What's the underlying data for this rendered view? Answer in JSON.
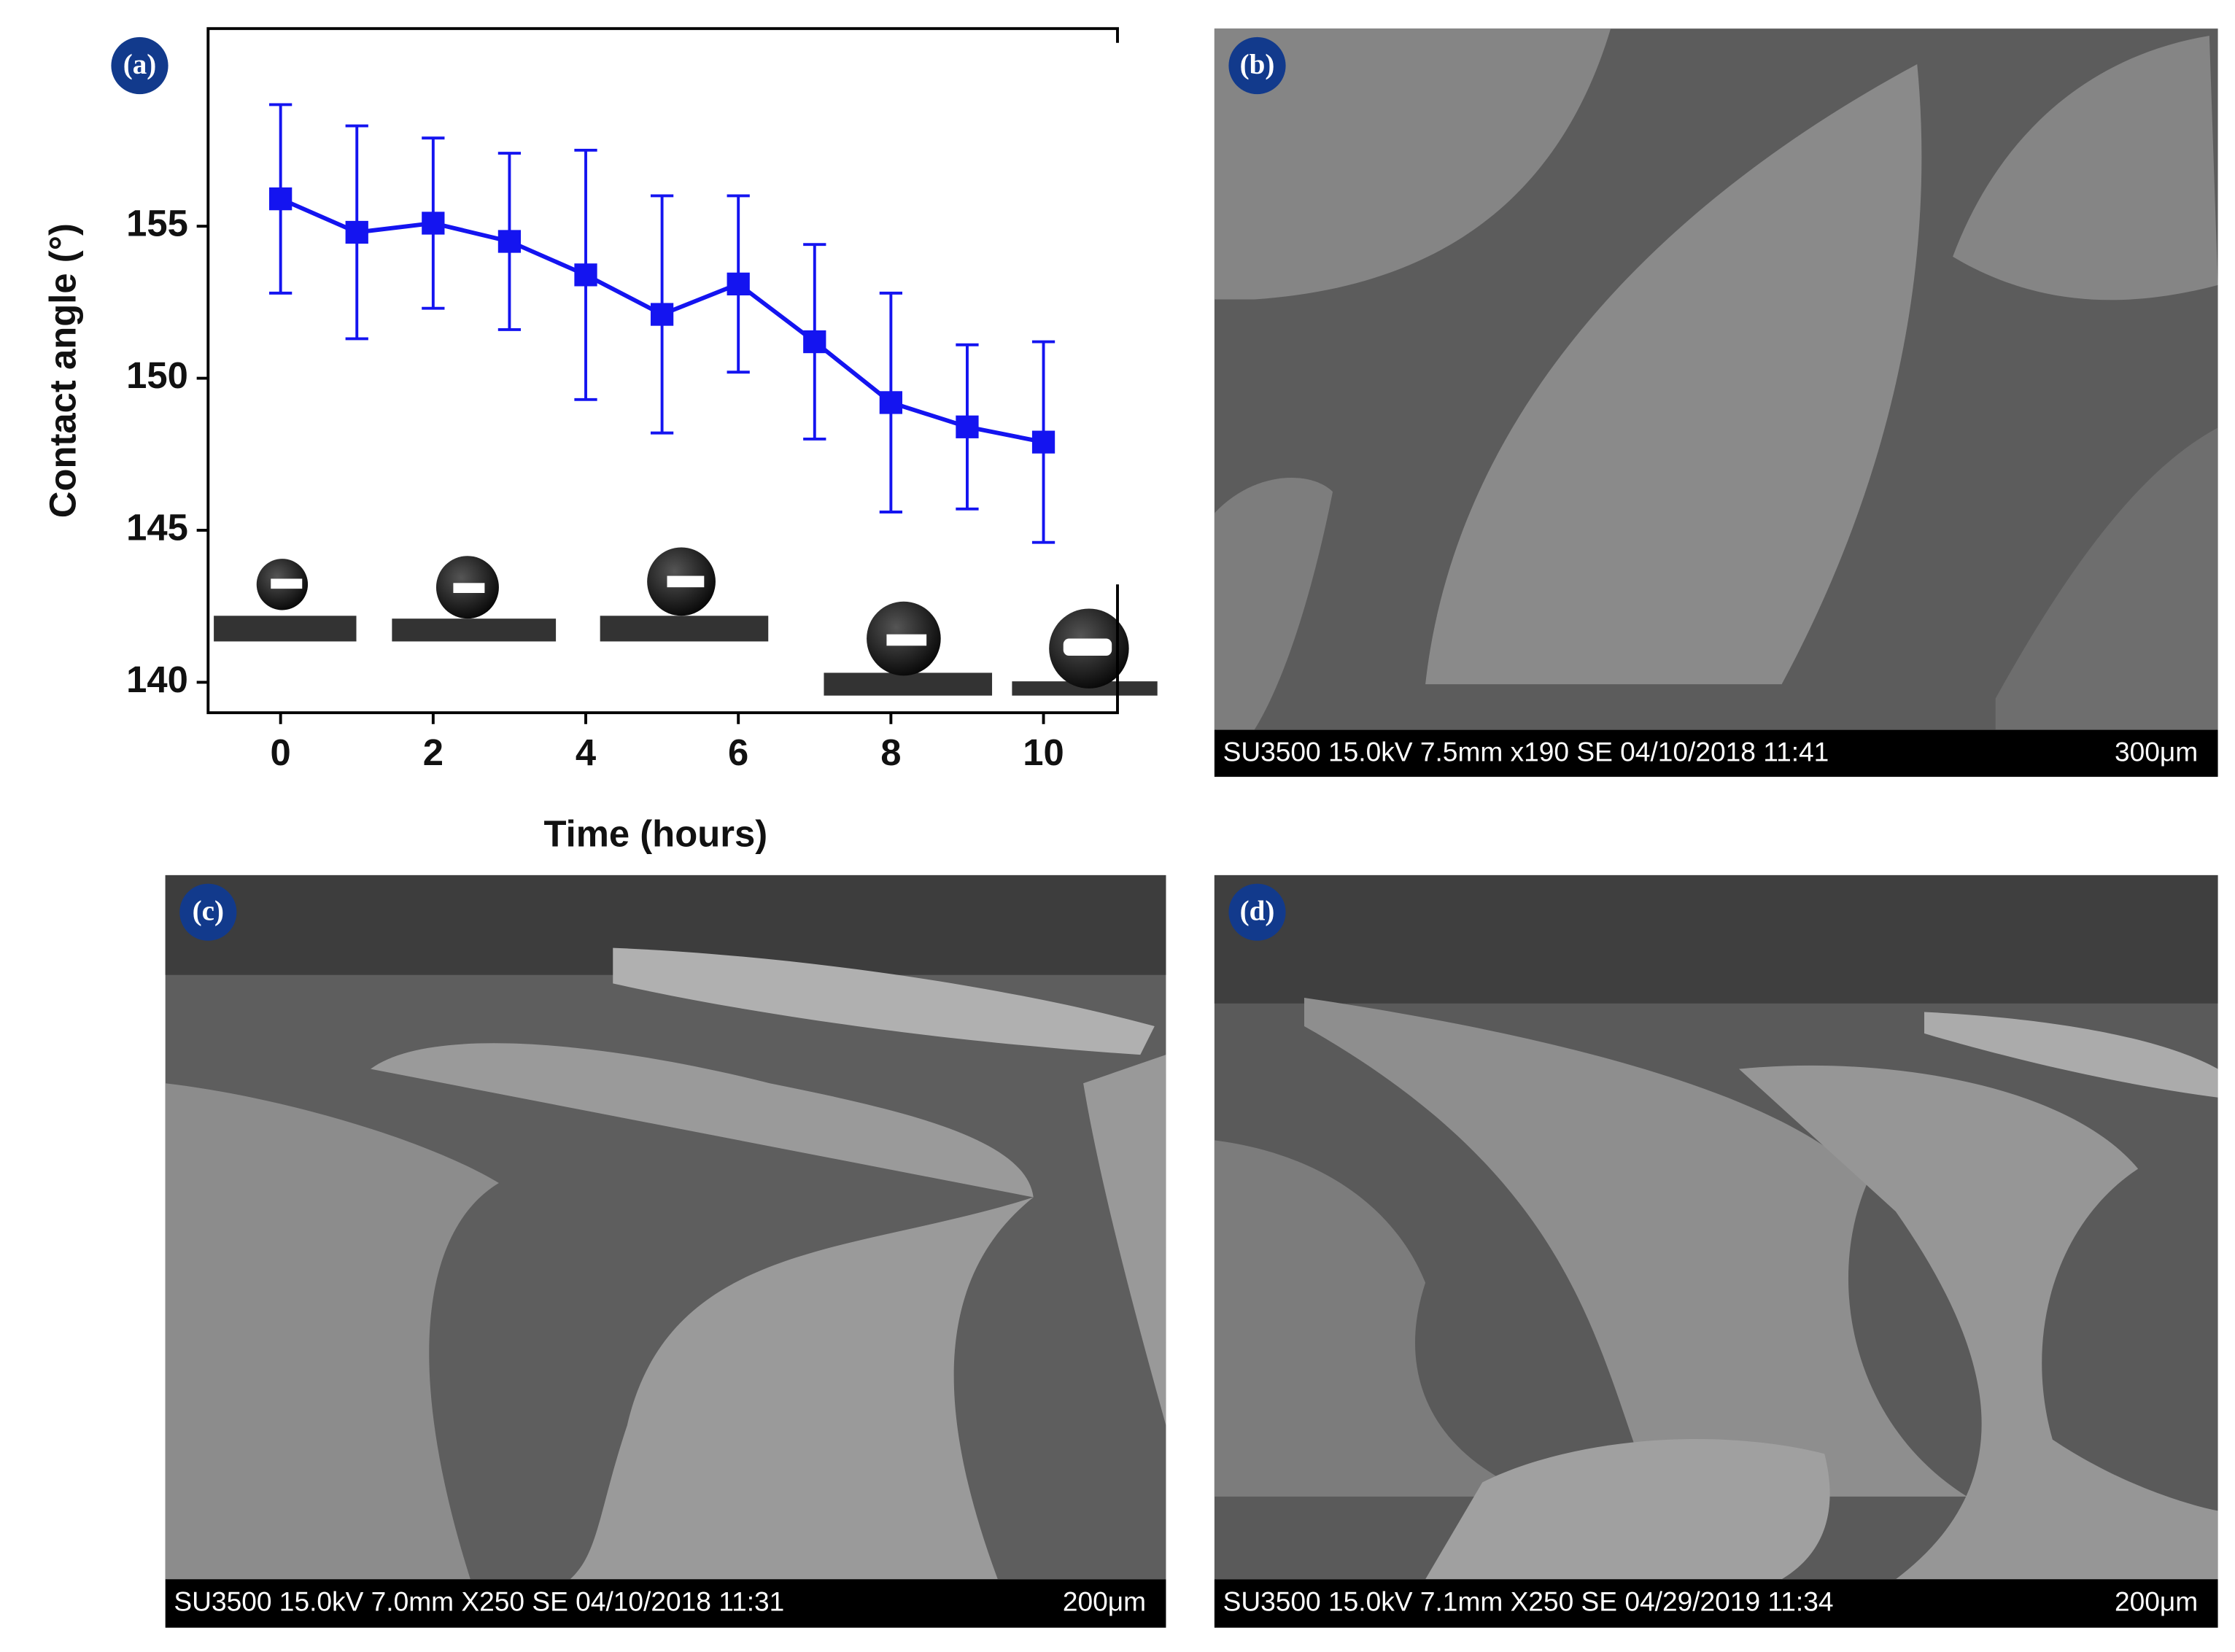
{
  "chart_data": {
    "type": "line",
    "panel_label": "(a)",
    "x_label": "Time (hours)",
    "y_label": "Contact angle (°)",
    "x": [
      0,
      1,
      2,
      3,
      4,
      5,
      6,
      7,
      8,
      9,
      10
    ],
    "series": [
      {
        "name": "Contact angle",
        "color": "#1414f0",
        "values": [
          155.9,
          154.8,
          155.1,
          154.5,
          153.4,
          152.1,
          153.1,
          151.2,
          149.2,
          148.4,
          147.9
        ],
        "errors": [
          3.1,
          3.5,
          2.8,
          2.9,
          4.1,
          3.9,
          2.9,
          3.2,
          3.6,
          2.7,
          3.3
        ]
      }
    ],
    "xlim": [
      -0.95,
      10.97
    ],
    "xticks": [
      0,
      2,
      4,
      6,
      8,
      10
    ],
    "ylim": [
      139,
      161.5
    ],
    "yticks": [
      140,
      145,
      150,
      155
    ]
  },
  "panels": [
    {
      "label": "(b)",
      "caption": "SU3500 15.0kV 7.5mm x190 SE 04/10/2018 11:41",
      "scale": "300μm"
    },
    {
      "label": "(c)",
      "caption": "SU3500 15.0kV 7.0mm X250 SE 04/10/2018 11:31",
      "scale": "200μm"
    },
    {
      "label": "(d)",
      "caption": "SU3500 15.0kV 7.1mm X250 SE  04/29/2019 11:34",
      "scale": "200μm"
    }
  ]
}
